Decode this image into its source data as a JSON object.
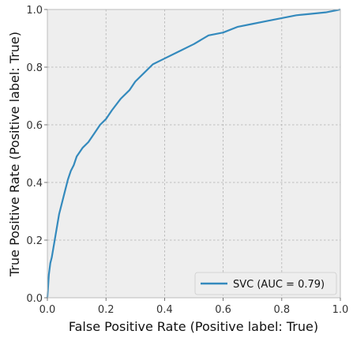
{
  "chart_data": {
    "type": "line",
    "xlabel": "False Positive Rate (Positive label: True)",
    "ylabel": "True Positive Rate (Positive label: True)",
    "xlim": [
      0,
      1
    ],
    "ylim": [
      0,
      1
    ],
    "xticks": [
      "0.0",
      "0.2",
      "0.4",
      "0.6",
      "0.8",
      "1.0"
    ],
    "yticks": [
      "0.0",
      "0.2",
      "0.4",
      "0.6",
      "0.8",
      "1.0"
    ],
    "grid": true,
    "legend_position": "lower-right",
    "series": [
      {
        "name": "SVC (AUC = 0.79)",
        "color": "#348abd",
        "x": [
          0.0,
          0.005,
          0.01,
          0.015,
          0.02,
          0.03,
          0.04,
          0.05,
          0.06,
          0.07,
          0.08,
          0.09,
          0.1,
          0.12,
          0.14,
          0.16,
          0.18,
          0.2,
          0.22,
          0.25,
          0.28,
          0.3,
          0.33,
          0.36,
          0.4,
          0.44,
          0.46,
          0.48,
          0.5,
          0.55,
          0.6,
          0.65,
          0.7,
          0.75,
          0.8,
          0.85,
          0.9,
          0.95,
          1.0
        ],
        "y": [
          0.0,
          0.08,
          0.12,
          0.14,
          0.17,
          0.23,
          0.29,
          0.33,
          0.37,
          0.41,
          0.44,
          0.46,
          0.49,
          0.52,
          0.54,
          0.57,
          0.6,
          0.62,
          0.65,
          0.69,
          0.72,
          0.75,
          0.78,
          0.81,
          0.83,
          0.85,
          0.86,
          0.87,
          0.88,
          0.91,
          0.92,
          0.94,
          0.95,
          0.96,
          0.97,
          0.98,
          0.985,
          0.99,
          1.0
        ]
      }
    ]
  }
}
